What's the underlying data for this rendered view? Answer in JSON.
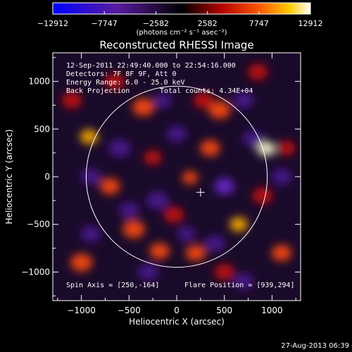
{
  "chart_data": {
    "type": "heatmap",
    "title": "Reconstructed RHESSI Image",
    "xlabel": "Heliocentric X (arcsec)",
    "ylabel": "Heliocentric Y (arcsec)",
    "xlim": [
      -1300,
      1300
    ],
    "ylim": [
      -1300,
      1300
    ],
    "x_ticks": [
      -1000,
      -500,
      0,
      500,
      1000
    ],
    "y_ticks": [
      -1000,
      -500,
      0,
      500,
      1000
    ],
    "x_tick_labels": [
      "−1000",
      "−500",
      "0",
      "500",
      "1000"
    ],
    "y_tick_labels": [
      "−1000",
      "−500",
      "0",
      "500",
      "1000"
    ],
    "colorbar": {
      "tick_labels": [
        "−12912",
        "−7747",
        "−2582",
        "2582",
        "7747",
        "12912"
      ],
      "tick_values": [
        -12912,
        -7747,
        -2582,
        2582,
        7747,
        12912
      ],
      "range": [
        -12912,
        12912
      ],
      "unit_label": "(photons cm⁻² s⁻¹ asec⁻²)"
    },
    "annotations": {
      "time_range": "12-Sep-2011 22:49:40.000 to 22:54:16.000",
      "detectors": "Detectors: 7F 8F 9F, Att 0",
      "energy_range": "Energy Range: 6.0 - 25.0 keV",
      "method": "Back Projection",
      "total_counts": "Total counts: 4.34E+04",
      "spin_axis": "Spin Axis = [250,-164]",
      "flare_position": "Flare Position = [939,294]"
    },
    "solar_limb_radius": 950,
    "spin_axis_marker": [
      250,
      -164
    ],
    "blobs": [
      {
        "x": 939,
        "y": 294,
        "intensity": 12912,
        "r": 90
      },
      {
        "x": -920,
        "y": 420,
        "intensity": 9500,
        "r": 90
      },
      {
        "x": 650,
        "y": -500,
        "intensity": 10500,
        "r": 90
      },
      {
        "x": 140,
        "y": -10,
        "intensity": 7000,
        "r": 80
      },
      {
        "x": -450,
        "y": -550,
        "intensity": 7500,
        "r": 110
      },
      {
        "x": -350,
        "y": 730,
        "intensity": 6500,
        "r": 110
      },
      {
        "x": 450,
        "y": 700,
        "intensity": 6000,
        "r": 110
      },
      {
        "x": 280,
        "y": 800,
        "intensity": 5500,
        "r": 100
      },
      {
        "x": -700,
        "y": -100,
        "intensity": 6000,
        "r": 100
      },
      {
        "x": -250,
        "y": 200,
        "intensity": 5500,
        "r": 90
      },
      {
        "x": 350,
        "y": 300,
        "intensity": 6000,
        "r": 100
      },
      {
        "x": -30,
        "y": -400,
        "intensity": 5500,
        "r": 100
      },
      {
        "x": -180,
        "y": -780,
        "intensity": 6500,
        "r": 100
      },
      {
        "x": 200,
        "y": -800,
        "intensity": 6000,
        "r": 100
      },
      {
        "x": 900,
        "y": -200,
        "intensity": 5000,
        "r": 100
      },
      {
        "x": 1100,
        "y": -800,
        "intensity": 7000,
        "r": 100
      },
      {
        "x": -1000,
        "y": -900,
        "intensity": 6000,
        "r": 110
      },
      {
        "x": -1100,
        "y": 800,
        "intensity": 5500,
        "r": 100
      },
      {
        "x": -650,
        "y": 1000,
        "intensity": 5500,
        "r": 100
      },
      {
        "x": 850,
        "y": 1100,
        "intensity": 5000,
        "r": 100
      },
      {
        "x": 500,
        "y": -1000,
        "intensity": 5500,
        "r": 100
      },
      {
        "x": 1150,
        "y": 300,
        "intensity": 5000,
        "r": 90
      },
      {
        "x": -200,
        "y": -250,
        "intensity": -6000,
        "r": 110
      },
      {
        "x": 500,
        "y": -100,
        "intensity": -6500,
        "r": 100
      },
      {
        "x": 800,
        "y": 400,
        "intensity": -6000,
        "r": 100
      },
      {
        "x": -600,
        "y": 300,
        "intensity": -5500,
        "r": 110
      },
      {
        "x": 0,
        "y": 450,
        "intensity": -6000,
        "r": 100
      },
      {
        "x": 400,
        "y": -700,
        "intensity": -6000,
        "r": 100
      },
      {
        "x": -500,
        "y": -350,
        "intensity": -5000,
        "r": 100
      },
      {
        "x": 700,
        "y": 800,
        "intensity": -5500,
        "r": 100
      },
      {
        "x": -900,
        "y": 0,
        "intensity": -5500,
        "r": 100
      },
      {
        "x": 100,
        "y": -600,
        "intensity": -5500,
        "r": 90
      },
      {
        "x": -150,
        "y": 800,
        "intensity": -5000,
        "r": 90
      },
      {
        "x": 1100,
        "y": 0,
        "intensity": -5000,
        "r": 100
      },
      {
        "x": 700,
        "y": -1100,
        "intensity": -5000,
        "r": 100
      },
      {
        "x": -300,
        "y": -1000,
        "intensity": -5000,
        "r": 100
      },
      {
        "x": -900,
        "y": -600,
        "intensity": -5000,
        "r": 100
      }
    ]
  },
  "timestamp": "27-Aug-2013 06:39"
}
